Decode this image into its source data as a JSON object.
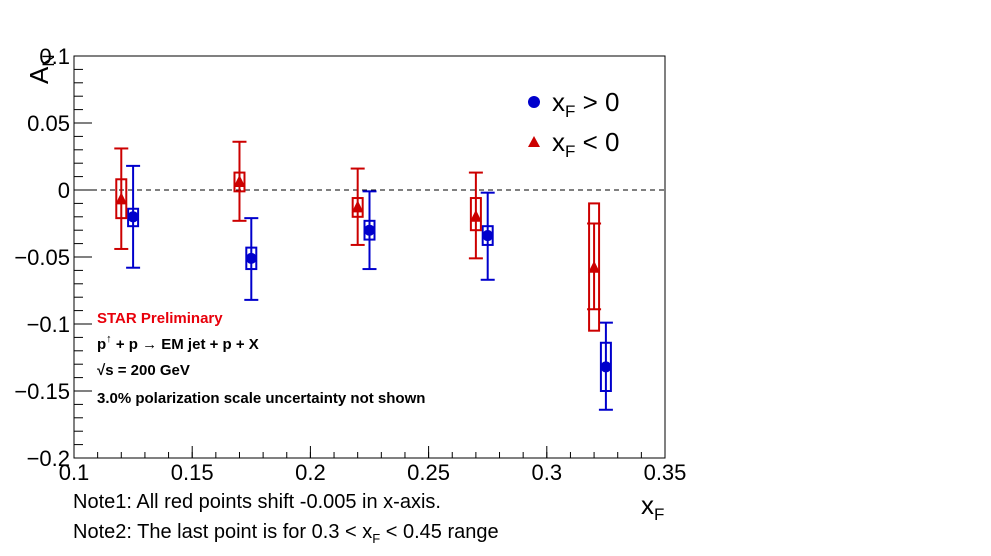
{
  "colors": {
    "red_series": "#cc0000",
    "blue_series": "#0000cc",
    "axis": "#000000",
    "annotation_title": "#e8000b"
  },
  "chart_data": {
    "type": "scatter",
    "xlim": [
      0.1,
      0.35
    ],
    "ylim": [
      -0.2,
      0.1
    ],
    "xticks": [
      0.1,
      0.15,
      0.2,
      0.25,
      0.3,
      0.35
    ],
    "xtick_labels": [
      "0.1",
      "0.15",
      "0.2",
      "0.25",
      "0.3",
      "0.35"
    ],
    "yticks": [
      -0.2,
      -0.15,
      -0.1,
      -0.05,
      0,
      0.05,
      0.1
    ],
    "ytick_labels": [
      "−0.2",
      "−0.15",
      "−0.1",
      "−0.05",
      "0",
      "0.05",
      "0.1"
    ],
    "xlabel": {
      "main": "x",
      "sub": "F"
    },
    "ylabel": {
      "main": "A",
      "sub": "N"
    },
    "zero_line": {
      "y": 0,
      "style": "dashed"
    },
    "legend_position": "top-right",
    "series": [
      {
        "key": "pos",
        "legend": {
          "main": "x",
          "sub": "F",
          "rest": " > 0"
        },
        "marker": "circle",
        "color": "#0000cc",
        "points": [
          {
            "x": 0.125,
            "y": -0.02,
            "stat": [
              -0.058,
              0.018
            ],
            "sys": [
              -0.027,
              -0.014
            ]
          },
          {
            "x": 0.175,
            "y": -0.051,
            "stat": [
              -0.082,
              -0.021
            ],
            "sys": [
              -0.059,
              -0.043
            ]
          },
          {
            "x": 0.225,
            "y": -0.03,
            "stat": [
              -0.059,
              -0.001
            ],
            "sys": [
              -0.037,
              -0.023
            ]
          },
          {
            "x": 0.275,
            "y": -0.034,
            "stat": [
              -0.067,
              -0.002
            ],
            "sys": [
              -0.041,
              -0.027
            ]
          },
          {
            "x": 0.325,
            "y": -0.132,
            "stat": [
              -0.164,
              -0.099
            ],
            "sys": [
              -0.15,
              -0.114
            ]
          }
        ]
      },
      {
        "key": "neg",
        "legend": {
          "main": "x",
          "sub": "F",
          "rest": " < 0"
        },
        "marker": "triangle",
        "color": "#cc0000",
        "points": [
          {
            "x": 0.12,
            "y": -0.007,
            "stat": [
              -0.044,
              0.031
            ],
            "sys": [
              -0.021,
              0.008
            ]
          },
          {
            "x": 0.17,
            "y": 0.006,
            "stat": [
              -0.023,
              0.036
            ],
            "sys": [
              -0.001,
              0.013
            ]
          },
          {
            "x": 0.22,
            "y": -0.013,
            "stat": [
              -0.041,
              0.016
            ],
            "sys": [
              -0.02,
              -0.006
            ]
          },
          {
            "x": 0.27,
            "y": -0.02,
            "stat": [
              -0.051,
              0.013
            ],
            "sys": [
              -0.03,
              -0.006
            ]
          },
          {
            "x": 0.32,
            "y": -0.058,
            "stat": [
              -0.089,
              -0.025
            ],
            "sys": [
              -0.105,
              -0.01
            ]
          }
        ]
      }
    ],
    "annotations": {
      "title": "STAR Preliminary",
      "reaction": {
        "p1": "p",
        "sup": "↑",
        "rest": " + p → EM jet + p + X"
      },
      "energy": "√s = 200 GeV",
      "note": "3.0% polarization scale uncertainty not shown"
    }
  },
  "notes": {
    "note1": "Note1: All red points shift -0.005 in x-axis.",
    "note2_pre": "Note2: The last point is for 0.3 < x",
    "note2_sub": "F",
    "note2_post": " < 0.45 range"
  }
}
